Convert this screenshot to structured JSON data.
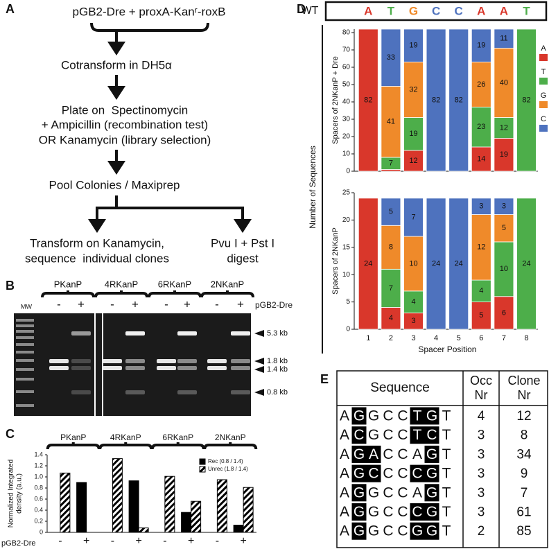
{
  "panel_labels": [
    "A",
    "B",
    "C",
    "D",
    "E"
  ],
  "flowchart": {
    "nodes": [
      {
        "lines": [
          "pGB2-Dre + proxA-Kanʳ-roxB"
        ]
      },
      {
        "lines": [
          "Cotransform in DH5α"
        ]
      },
      {
        "lines": [
          "Plate on  Spectinomycin",
          "+ Ampicillin (recombination test)",
          "OR Kanamycin (library selection)"
        ]
      },
      {
        "lines": [
          "Pool Colonies / Maxiprep"
        ]
      },
      {
        "lines": [
          "Transform on Kanamycin,",
          "sequence  individual clones"
        ]
      },
      {
        "lines": [
          "Pvu I + Pst I",
          "digest"
        ]
      }
    ]
  },
  "gel": {
    "groups": [
      "PKanP",
      "4RKanP",
      "6RKanP",
      "2NKanP"
    ],
    "lanes": [
      "-",
      "+"
    ],
    "treatment": "pGB2-Dre",
    "ladder": "MW",
    "bands": [
      "5.3 kb",
      "1.8 kb",
      "1.4 kb",
      "0.8 kb"
    ]
  },
  "chart_data": [
    {
      "type": "bar",
      "groups": [
        "PKanP",
        "4RKanP",
        "6RKanP",
        "2NKanP"
      ],
      "categories": [
        "-",
        "+",
        "-",
        "+",
        "-",
        "+",
        "-",
        "+"
      ],
      "xlabel": "pGB2-Dre",
      "ylabel": [
        "Normalized Integrated",
        "density (a.u.)"
      ],
      "ylim": [
        0,
        1.4
      ],
      "yticks": [
        0,
        0.2,
        0.4,
        0.6,
        0.8,
        {
          "value": 1,
          "label": "1.0"
        },
        1.2,
        1.4
      ],
      "legend": "upper right",
      "series": [
        {
          "name": "Rec (0.8 / 1.4)",
          "color": "#000000",
          "values": [
            null,
            0.9,
            null,
            0.93,
            null,
            0.36,
            null,
            0.13
          ]
        },
        {
          "name": "Unrec (1.8 / 1.4)",
          "color": "#000000",
          "hatch": true,
          "values": [
            1.07,
            null,
            1.33,
            0.08,
            1.01,
            0.56,
            0.95,
            0.81
          ]
        }
      ]
    },
    {
      "type": "stacked_bar",
      "reference": {
        "label": "WT",
        "sequence": [
          "A",
          "T",
          "G",
          "C",
          "C",
          "A",
          "A",
          "T"
        ]
      },
      "ylabel": "Spacers of 2NKanP + Dre",
      "ylim": [
        0,
        82
      ],
      "yticks": [
        0,
        10,
        20,
        30,
        40,
        50,
        60,
        70,
        80
      ],
      "legend": "right",
      "series": [
        {
          "name": "A",
          "color": "#d9372b",
          "values": [
            82,
            1,
            12,
            0,
            0,
            14,
            19,
            0
          ]
        },
        {
          "name": "T",
          "color": "#4dae4a",
          "values": [
            0,
            7,
            19,
            0,
            0,
            23,
            12,
            82
          ]
        },
        {
          "name": "G",
          "color": "#ef8a2a",
          "values": [
            0,
            41,
            32,
            0,
            0,
            26,
            40,
            0
          ]
        },
        {
          "name": "C",
          "color": "#4e72be",
          "values": [
            0,
            33,
            19,
            82,
            82,
            19,
            11,
            0
          ]
        }
      ]
    },
    {
      "type": "stacked_bar",
      "ylabel": "Spacers of 2NKanP",
      "categories": [
        "1",
        "2",
        "3",
        "4",
        "5",
        "6",
        "7",
        "8"
      ],
      "xlabel": "Spacer Position",
      "ylim": [
        0,
        25
      ],
      "yticks": [
        0,
        5,
        10,
        15,
        20,
        25
      ],
      "series": [
        {
          "values": [
            24,
            4,
            3,
            0,
            0,
            5,
            6,
            0
          ]
        },
        {
          "values": [
            0,
            7,
            4,
            0,
            0,
            4,
            10,
            24
          ]
        },
        {
          "values": [
            0,
            8,
            10,
            0,
            0,
            12,
            5,
            0
          ]
        },
        {
          "values": [
            0,
            5,
            7,
            24,
            24,
            3,
            3,
            0
          ]
        }
      ]
    }
  ],
  "shared_ylabel": "Number of Sequences",
  "table": {
    "header": [
      [
        "Sequence"
      ],
      [
        "Occ",
        "Nr"
      ],
      [
        "Clone",
        "Nr"
      ]
    ],
    "rows": [
      {
        "sequence": [
          "A",
          "G",
          "G",
          "C",
          "C",
          "T",
          "G",
          "T"
        ],
        "occurrences": 4,
        "clone": 12
      },
      {
        "sequence": [
          "A",
          "C",
          "G",
          "C",
          "C",
          "T",
          "C",
          "T"
        ],
        "occurrences": 3,
        "clone": 8
      },
      {
        "sequence": [
          "A",
          "G",
          "A",
          "C",
          "C",
          "A",
          "G",
          "T"
        ],
        "occurrences": 3,
        "clone": 34
      },
      {
        "sequence": [
          "A",
          "G",
          "C",
          "C",
          "C",
          "C",
          "G",
          "T"
        ],
        "occurrences": 3,
        "clone": 9
      },
      {
        "sequence": [
          "A",
          "G",
          "G",
          "C",
          "C",
          "A",
          "G",
          "T"
        ],
        "occurrences": 3,
        "clone": 7
      },
      {
        "sequence": [
          "A",
          "G",
          "G",
          "C",
          "C",
          "C",
          "G",
          "T"
        ],
        "occurrences": 3,
        "clone": 61
      },
      {
        "sequence": [
          "A",
          "G",
          "G",
          "C",
          "C",
          "G",
          "G",
          "T"
        ],
        "occurrences": 2,
        "clone": 85
      }
    ]
  }
}
